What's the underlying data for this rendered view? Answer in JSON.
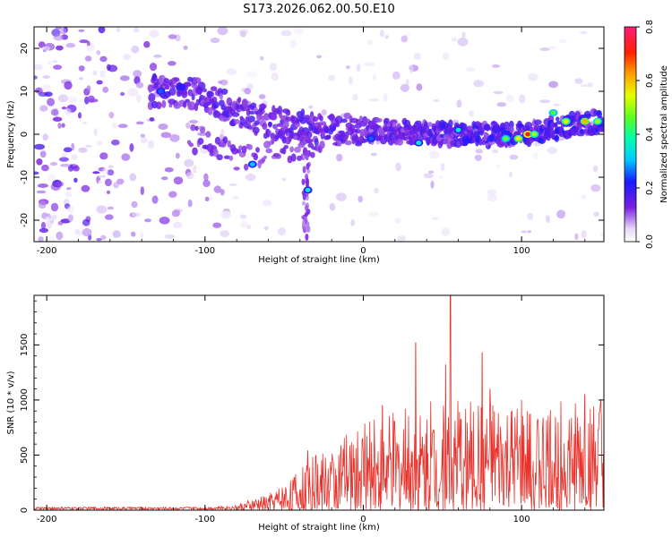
{
  "title": "S173.2026.062.00.50.E10",
  "colors": {
    "spectrogram_base": "#7a1fe0",
    "snr_line": "#e8322b",
    "frame": "#000000"
  },
  "chart_data": [
    {
      "type": "heatmap",
      "name": "spectrogram",
      "xlabel": "Height of straight line (km)",
      "ylabel": "Frequency (Hz)",
      "xlim": [
        -208,
        152
      ],
      "ylim": [
        -25,
        25
      ],
      "xticks": [
        -200,
        -100,
        0,
        100
      ],
      "yticks": [
        -20,
        -10,
        0,
        10,
        20
      ],
      "xtick_labels": [
        "-200",
        "-100",
        "0",
        "100"
      ],
      "ytick_labels": [
        "-20",
        "-10",
        "0",
        "10",
        "20"
      ],
      "colorbar": {
        "label": "Normalized spectral amplitude",
        "range": [
          0.0,
          0.8
        ],
        "ticks": [
          0.0,
          0.2,
          0.4,
          0.6,
          0.8
        ],
        "tick_labels": [
          "0.0",
          "0.2",
          "0.4",
          "0.6",
          "0.8"
        ]
      },
      "signal_ridge": [
        {
          "x": -130,
          "freq": 10
        },
        {
          "x": -100,
          "freq": 9
        },
        {
          "x": -75,
          "freq": 4
        },
        {
          "x": -50,
          "freq": 2
        },
        {
          "x": -25,
          "freq": 1
        },
        {
          "x": 0,
          "freq": 1
        },
        {
          "x": 50,
          "freq": 0
        },
        {
          "x": 100,
          "freq": 0
        },
        {
          "x": 150,
          "freq": 3
        }
      ],
      "secondary_ridge": [
        {
          "x": -100,
          "freq": -1
        },
        {
          "x": -75,
          "freq": -6
        },
        {
          "x": -50,
          "freq": -3
        },
        {
          "x": -30,
          "freq": -3
        }
      ],
      "hotspots": [
        {
          "x": -128,
          "freq": 10,
          "amp": 0.25
        },
        {
          "x": -115,
          "freq": 11,
          "amp": 0.2
        },
        {
          "x": -70,
          "freq": -7,
          "amp": 0.3
        },
        {
          "x": -35,
          "freq": -13,
          "amp": 0.35
        },
        {
          "x": 5,
          "freq": -1,
          "amp": 0.25
        },
        {
          "x": 35,
          "freq": -2,
          "amp": 0.35
        },
        {
          "x": 60,
          "freq": 1,
          "amp": 0.35
        },
        {
          "x": 90,
          "freq": -1,
          "amp": 0.45
        },
        {
          "x": 98,
          "freq": -1,
          "amp": 0.55
        },
        {
          "x": 104,
          "freq": 0,
          "amp": 0.7
        },
        {
          "x": 108,
          "freq": 0,
          "amp": 0.5
        },
        {
          "x": 120,
          "freq": 5,
          "amp": 0.45
        },
        {
          "x": 128,
          "freq": 3,
          "amp": 0.55
        },
        {
          "x": 140,
          "freq": 3,
          "amp": 0.6
        },
        {
          "x": 148,
          "freq": 3,
          "amp": 0.5
        }
      ]
    },
    {
      "type": "line",
      "name": "snr",
      "xlabel": "Height of straight line (km)",
      "ylabel": "SNR (10 * v/v)",
      "xlim": [
        -208,
        152
      ],
      "ylim": [
        0,
        1950
      ],
      "xticks": [
        -200,
        -100,
        0,
        100
      ],
      "yticks": [
        0,
        500,
        1000,
        1500
      ],
      "xtick_labels": [
        "-200",
        "-100",
        "0",
        "100"
      ],
      "ytick_labels": [
        "0",
        "500",
        "1000",
        "1500"
      ],
      "envelope": [
        {
          "x": -208,
          "snr": 20
        },
        {
          "x": -100,
          "snr": 20
        },
        {
          "x": -80,
          "snr": 30
        },
        {
          "x": -60,
          "snr": 80
        },
        {
          "x": -40,
          "snr": 200
        },
        {
          "x": -20,
          "snr": 330
        },
        {
          "x": 0,
          "snr": 420
        },
        {
          "x": 20,
          "snr": 480
        },
        {
          "x": 40,
          "snr": 520
        },
        {
          "x": 60,
          "snr": 540
        },
        {
          "x": 80,
          "snr": 520
        },
        {
          "x": 100,
          "snr": 480
        },
        {
          "x": 120,
          "snr": 520
        },
        {
          "x": 140,
          "snr": 540
        },
        {
          "x": 152,
          "snr": 520
        }
      ],
      "peaks": [
        {
          "x": -35,
          "snr": 540
        },
        {
          "x": 12,
          "snr": 950
        },
        {
          "x": 33,
          "snr": 1520
        },
        {
          "x": 52,
          "snr": 1320
        },
        {
          "x": 55,
          "snr": 1950
        },
        {
          "x": 75,
          "snr": 1430
        },
        {
          "x": 80,
          "snr": 1100
        },
        {
          "x": 100,
          "snr": 1000
        },
        {
          "x": 140,
          "snr": 1050
        },
        {
          "x": 150,
          "snr": 1000
        }
      ]
    }
  ]
}
